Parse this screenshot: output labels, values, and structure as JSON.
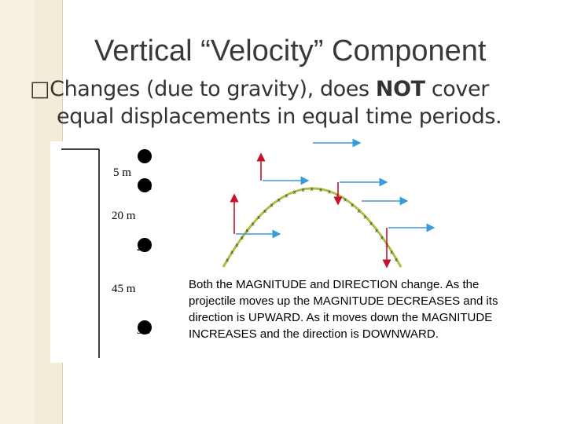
{
  "slide": {
    "title": "Vertical “Velocity” Component",
    "bullet_glyph": "□",
    "bullet_part1": "Changes (due to gravity), does ",
    "bullet_bold": "NOT",
    "bullet_part2": " cover",
    "bullet_line2": "equal displacements in equal time periods."
  },
  "figure_left": {
    "distances": [
      "5 m",
      "20 m",
      "45 m"
    ],
    "times": [
      "1 s",
      "2 s",
      "3 s"
    ]
  },
  "figure_right": {
    "trajectory_color": "#a9c23f",
    "vertical_arrow_color": "#c8102e",
    "horizontal_arrow_color": "#3b9ad9"
  },
  "caption": "Both the MAGNITUDE and DIRECTION change. As the projectile moves up the MAGNITUDE DECREASES and its direction is UPWARD. As it moves down the MAGNITUDE INCREASES and the direction is DOWNWARD."
}
